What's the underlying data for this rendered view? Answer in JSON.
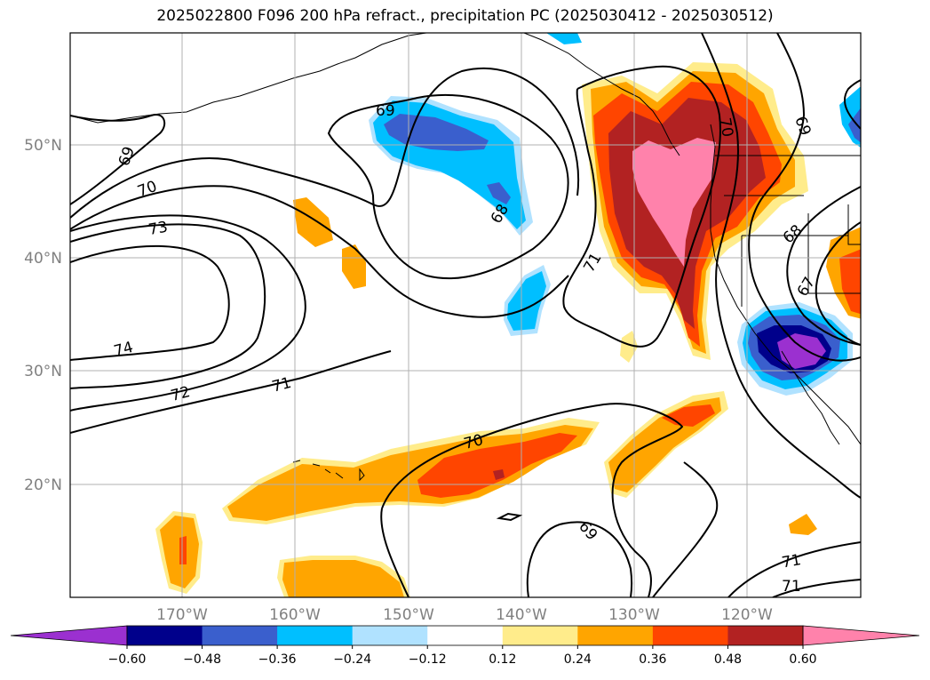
{
  "title": "2025022800 F096 200 hPa refract., precipitation PC (2025030412 - 2025030512)",
  "lat_labels": [
    "50°N",
    "40°N",
    "30°N",
    "20°N"
  ],
  "lon_labels": [
    "170°W",
    "160°W",
    "150°W",
    "140°W",
    "130°W",
    "120°W"
  ],
  "contour_labels": [
    "69",
    "69",
    "70",
    "73",
    "74",
    "72",
    "71",
    "68",
    "71",
    "70",
    "69",
    "68",
    "67",
    "70",
    "69",
    "71",
    "71"
  ],
  "colorbar": {
    "labels": [
      "−0.60",
      "−0.48",
      "−0.36",
      "−0.24",
      "−0.12",
      "0.12",
      "0.24",
      "0.36",
      "0.48",
      "0.60"
    ],
    "colors": [
      "#9b30d0",
      "#00008b",
      "#3a5fcd",
      "#00bfff",
      "#b0e2ff",
      "#ffffff",
      "#ffec8b",
      "#ffa500",
      "#ff4500",
      "#b22222",
      "#ff82ab"
    ]
  }
}
